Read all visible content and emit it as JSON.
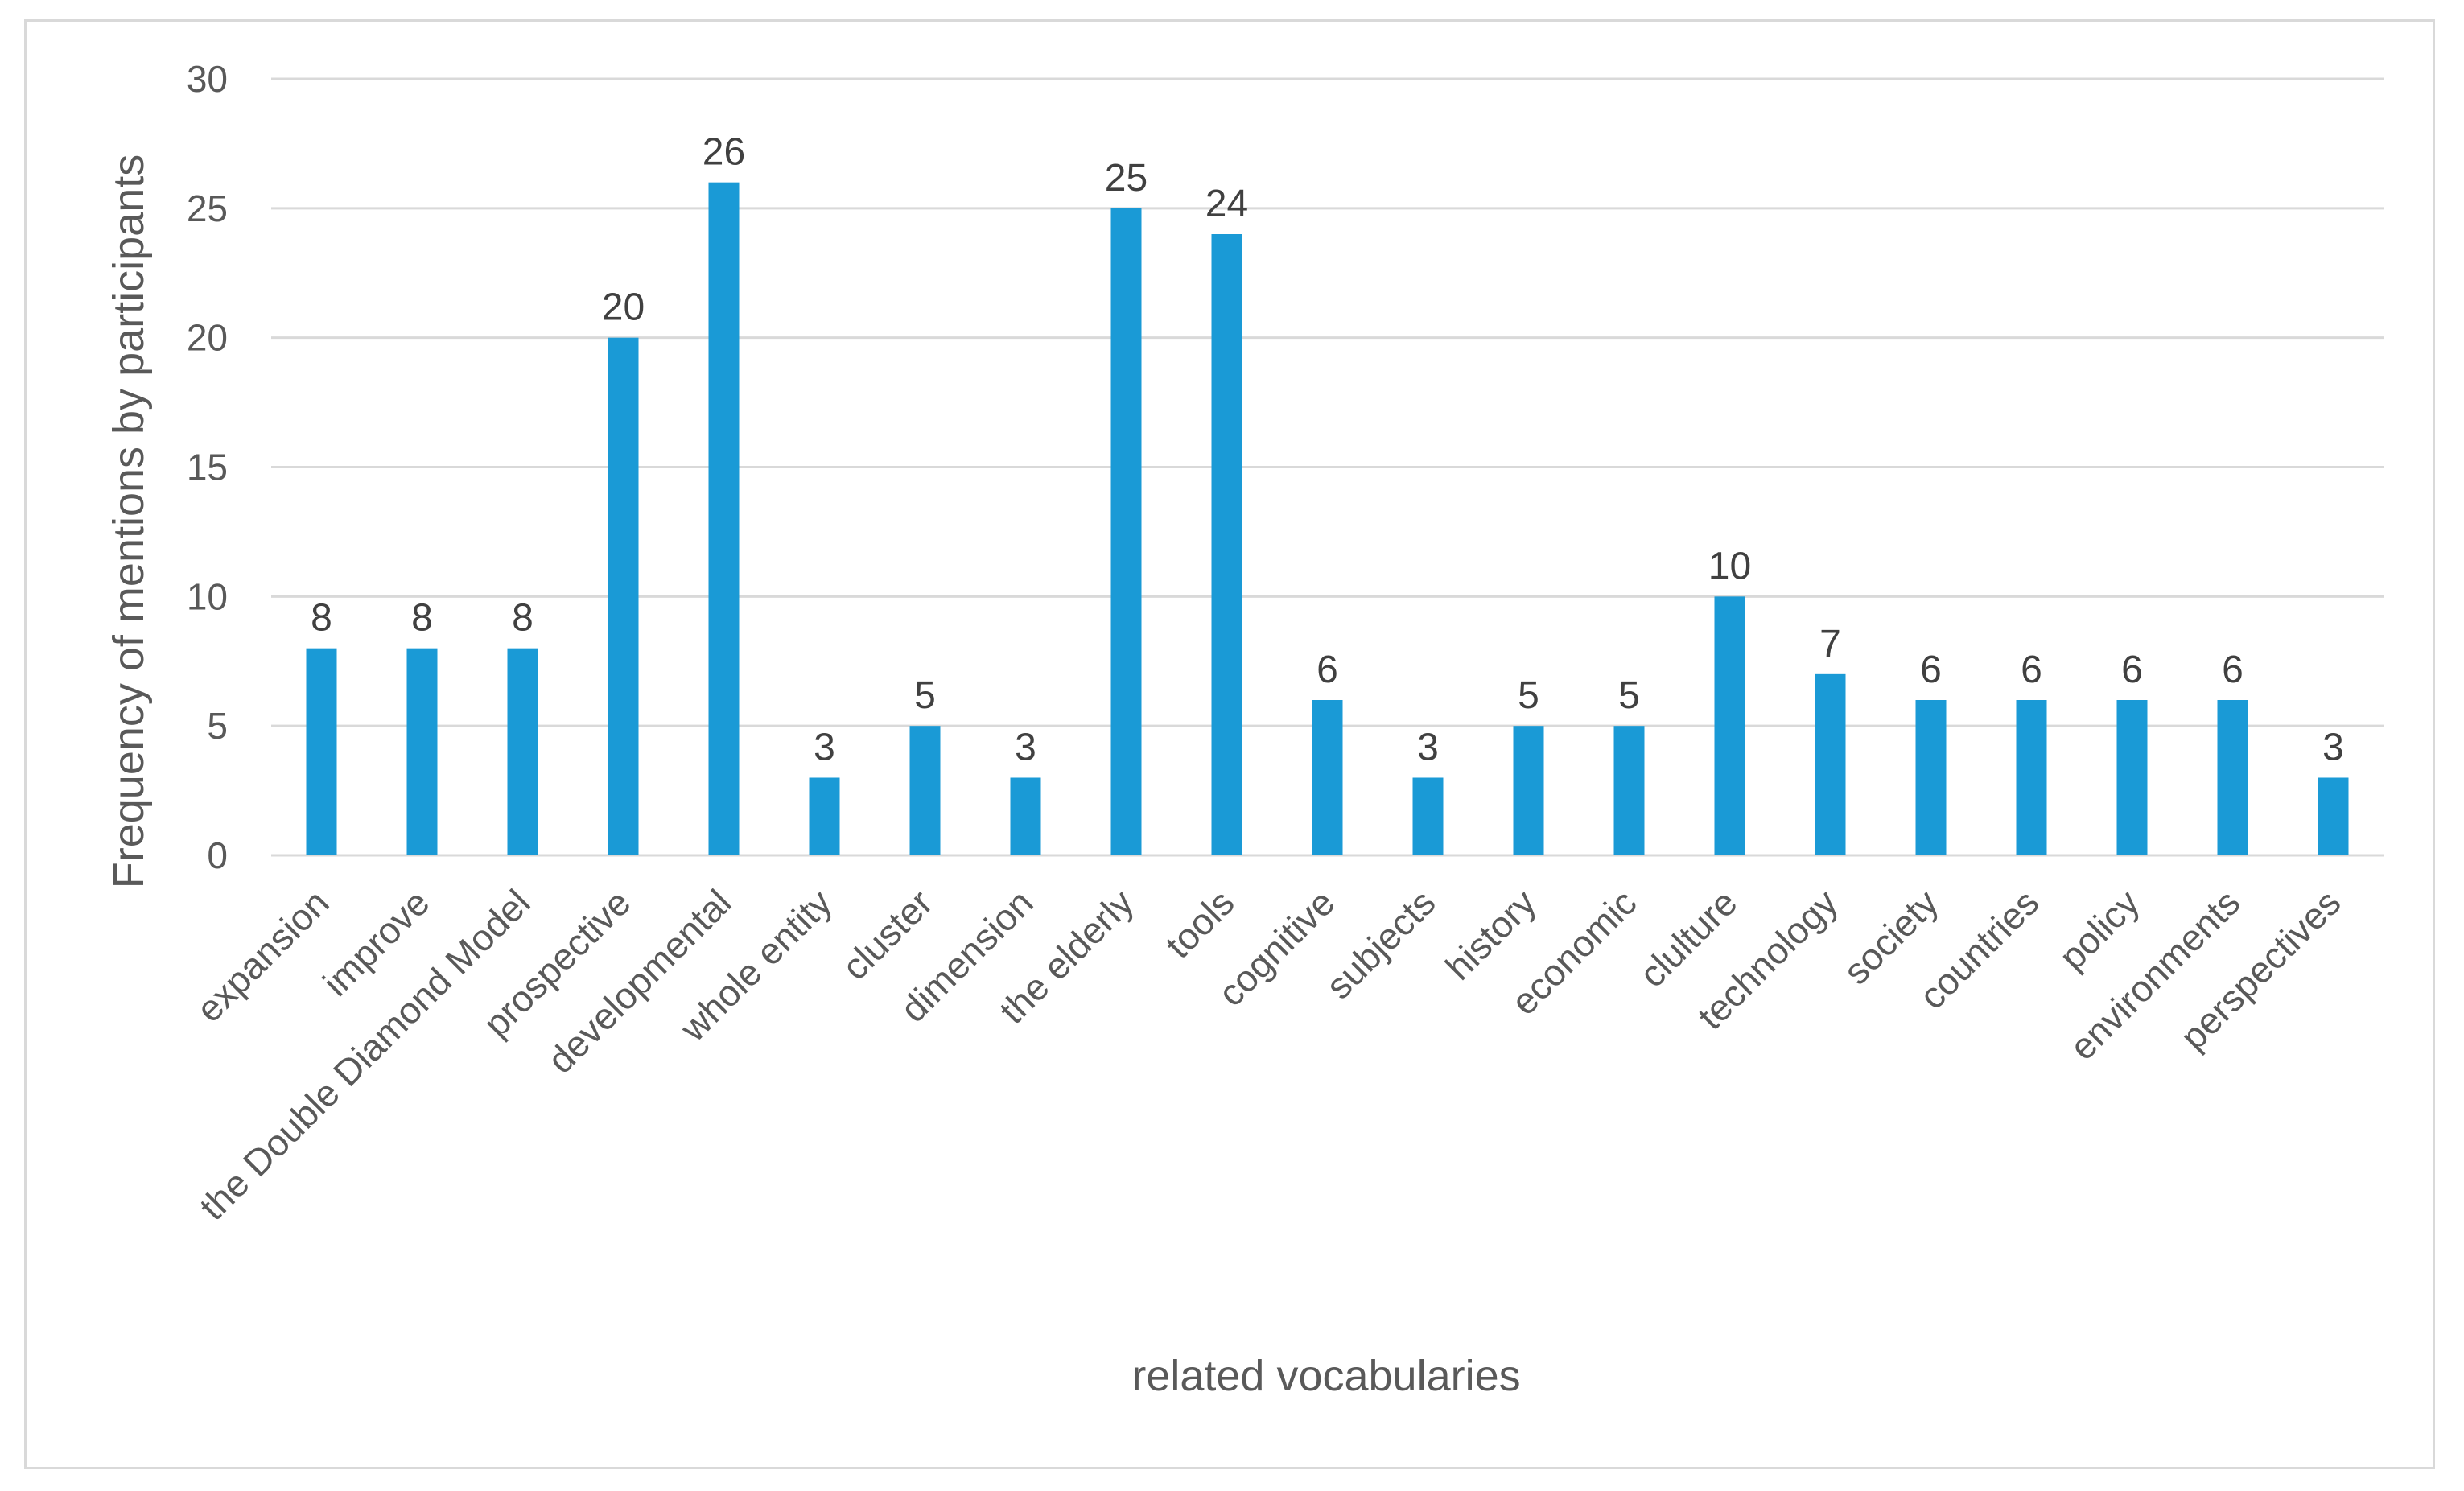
{
  "chart_data": {
    "type": "bar",
    "title": "",
    "xlabel": "related vocabularies",
    "ylabel": "Frequency of mentions by participants",
    "ylim": [
      0,
      30
    ],
    "yticks": [
      0,
      5,
      10,
      15,
      20,
      25,
      30
    ],
    "grid": true,
    "legend": "none",
    "bar_color": "#1a9ad6",
    "categories": [
      "expansion",
      "improve",
      "the Double Diamond Model",
      "prospective",
      "developmental",
      "whole entity",
      "cluster",
      "dimension",
      "the elderly",
      "tools",
      "cognitive",
      "subjects",
      "history",
      "economic",
      "clulture",
      "technology",
      "society",
      "countries",
      "policy",
      "environments",
      "perspectives"
    ],
    "values": [
      8,
      8,
      8,
      20,
      26,
      3,
      5,
      3,
      25,
      24,
      6,
      3,
      5,
      5,
      10,
      7,
      6,
      6,
      6,
      6,
      3
    ]
  }
}
